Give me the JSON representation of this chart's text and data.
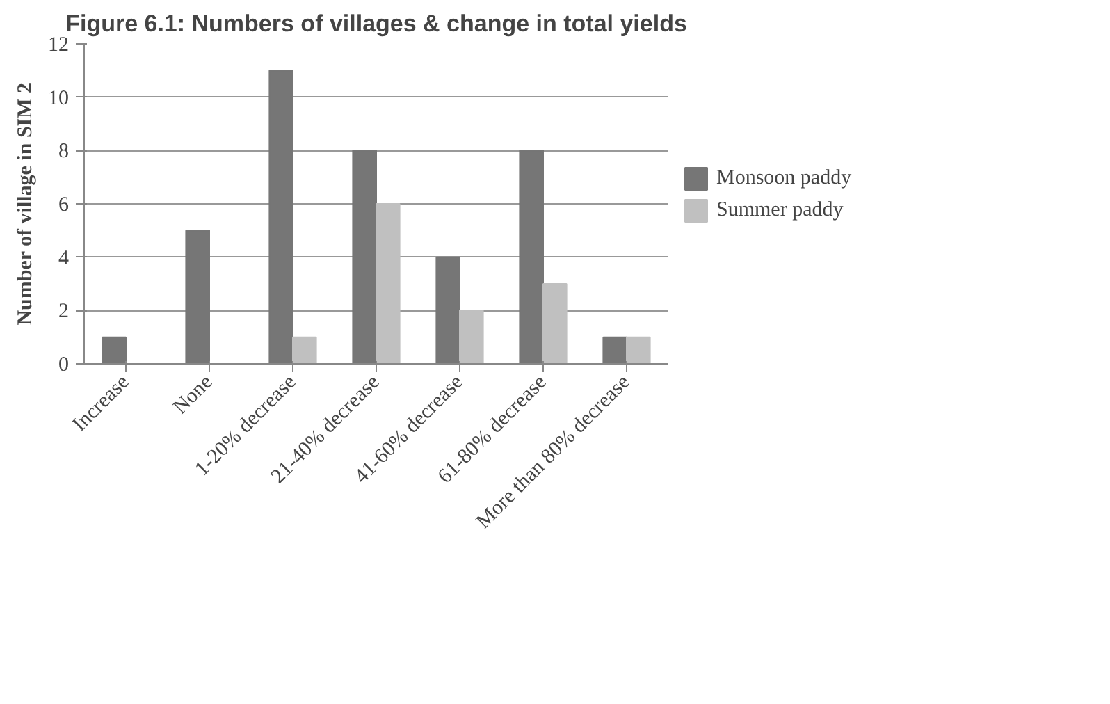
{
  "chart_data": {
    "type": "bar",
    "title": "Figure 6.1: Numbers of villages & change in total yields",
    "ylabel": "Number of village in SIM 2",
    "categories": [
      "Increase",
      "None",
      "1-20% decrease",
      "21-40% decrease",
      "41-60% decrease",
      "61-80% decrease",
      "More than 80% decrease"
    ],
    "series": [
      {
        "name": "Monsoon paddy",
        "color": "#767676",
        "values": [
          1,
          5,
          11,
          8,
          4,
          8,
          1
        ]
      },
      {
        "name": "Summer paddy",
        "color": "#c0c0c0",
        "values": [
          0,
          0,
          1,
          6,
          2,
          3,
          1
        ]
      }
    ],
    "ylim": [
      0,
      12
    ],
    "yticks": [
      0,
      2,
      4,
      6,
      8,
      10,
      12
    ],
    "grid": "y",
    "legend": "right"
  }
}
